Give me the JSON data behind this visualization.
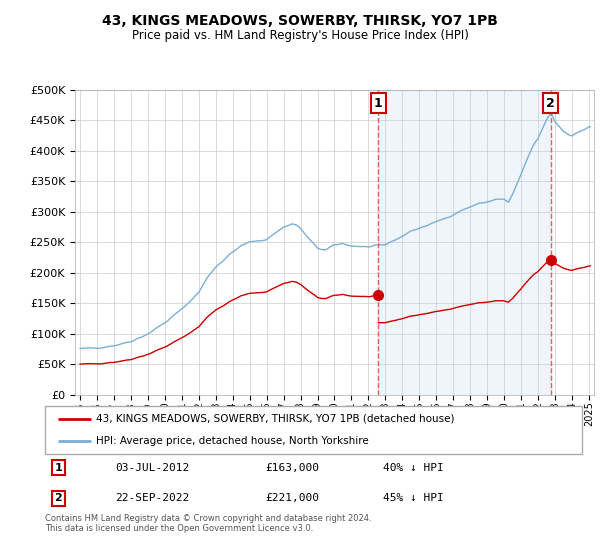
{
  "title": "43, KINGS MEADOWS, SOWERBY, THIRSK, YO7 1PB",
  "subtitle": "Price paid vs. HM Land Registry's House Price Index (HPI)",
  "legend_line1": "43, KINGS MEADOWS, SOWERBY, THIRSK, YO7 1PB (detached house)",
  "legend_line2": "HPI: Average price, detached house, North Yorkshire",
  "table_rows": [
    {
      "num": "1",
      "date": "03-JUL-2012",
      "price": "£163,000",
      "hpi": "40% ↓ HPI"
    },
    {
      "num": "2",
      "date": "22-SEP-2022",
      "price": "£221,000",
      "hpi": "45% ↓ HPI"
    }
  ],
  "footnote": "Contains HM Land Registry data © Crown copyright and database right 2024.\nThis data is licensed under the Open Government Licence v3.0.",
  "hpi_color": "#7bafd4",
  "hpi_fill_color": "#ddeeff",
  "price_color": "#cc0000",
  "vline_color": "#e06060",
  "background_color": "#ffffff",
  "grid_color": "#cccccc",
  "ylim": [
    0,
    500000
  ],
  "yticks": [
    0,
    50000,
    100000,
    150000,
    200000,
    250000,
    300000,
    350000,
    400000,
    450000,
    500000
  ],
  "sale_year_1": 2012.583,
  "sale_price_1": 163000,
  "sale_year_2": 2022.75,
  "sale_price_2": 221000,
  "marker1_label": "1",
  "marker2_label": "2"
}
